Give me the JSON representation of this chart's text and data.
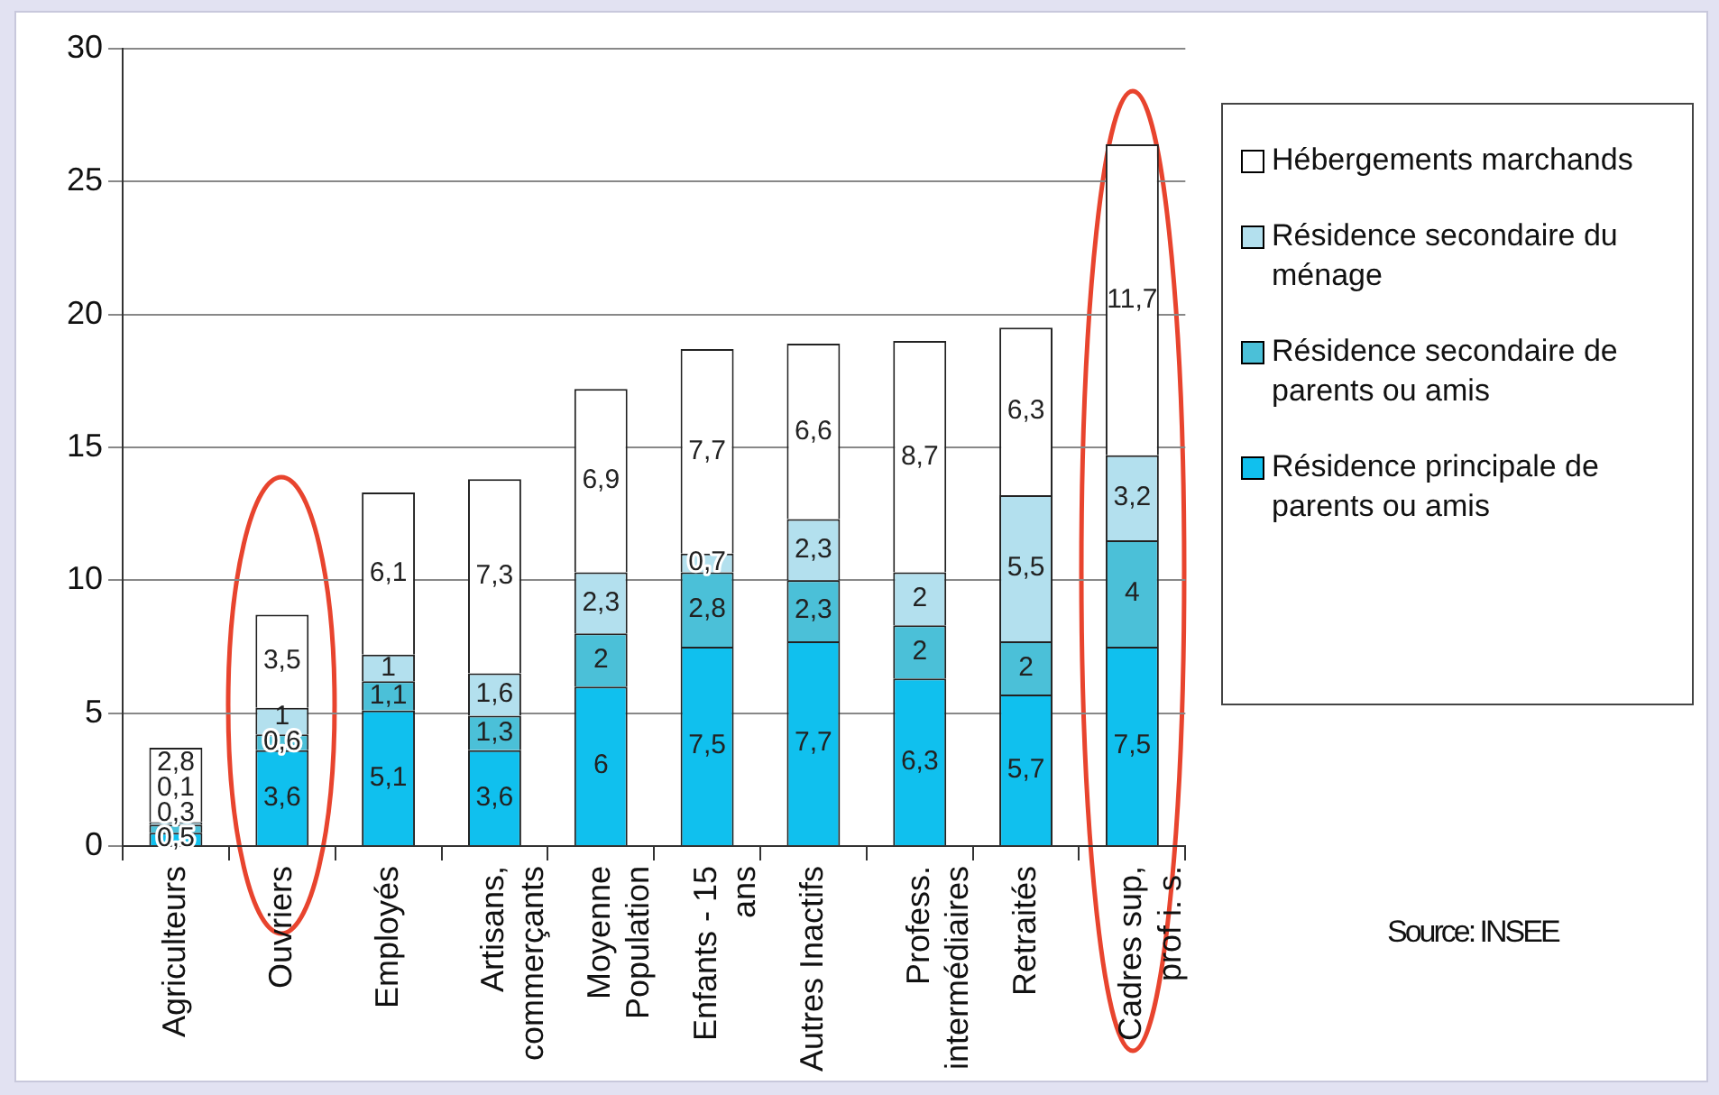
{
  "chart_data": {
    "type": "bar",
    "stacked": true,
    "grid": "y",
    "legend": "right",
    "ylim": [
      0,
      30
    ],
    "yticks": [
      0,
      5,
      10,
      15,
      20,
      25,
      30
    ],
    "categories": [
      "Agriculteurs",
      "Ouvriers",
      "Employés",
      "Artisans, commerçants",
      "Moyenne Population",
      "Enfants - 15 ans",
      "Autres Inactifs",
      "Profess. intermédiaires",
      "Retraités",
      "Cadres sup, prof i. s."
    ],
    "series": [
      {
        "name": "Résidence principale de parents ou amis",
        "color": "#10c0ee",
        "values": [
          0.5,
          3.6,
          5.1,
          3.6,
          6,
          7.5,
          7.7,
          6.3,
          5.7,
          7.5
        ],
        "value_labels": [
          "0,5",
          "3,6",
          "5,1",
          "3,6",
          "6",
          "7,5",
          "7,7",
          "6,3",
          "5,7",
          "7,5"
        ]
      },
      {
        "name": "Résidence secondaire de parents ou amis",
        "color": "#4bc0d8",
        "values": [
          0.3,
          0.6,
          1.1,
          1.3,
          2,
          2.8,
          2.3,
          2,
          2,
          4
        ],
        "value_labels": [
          "0,3",
          "0,6",
          "1,1",
          "1,3",
          "2",
          "2,8",
          "2,3",
          "2",
          "2",
          "4"
        ]
      },
      {
        "name": "Résidence secondaire du ménage",
        "color": "#b3e0ee",
        "values": [
          0.1,
          1,
          1,
          1.6,
          2.3,
          0.7,
          2.3,
          2,
          5.5,
          3.2
        ],
        "value_labels": [
          "0,1",
          "1",
          "1",
          "1,6",
          "2,3",
          "0,7",
          "2,3",
          "2",
          "5,5",
          "3,2"
        ]
      },
      {
        "name": "Hébergements marchands",
        "color": "#ffffff",
        "values": [
          2.8,
          3.5,
          6.1,
          7.3,
          6.9,
          7.7,
          6.6,
          8.7,
          6.3,
          11.7
        ],
        "value_labels": [
          "2,8",
          "3,5",
          "6,1",
          "7,3",
          "6,9",
          "7,7",
          "6,6",
          "8,7",
          "6,3",
          "11,7"
        ]
      }
    ],
    "annotations": [
      "Source: INSEE"
    ]
  }
}
